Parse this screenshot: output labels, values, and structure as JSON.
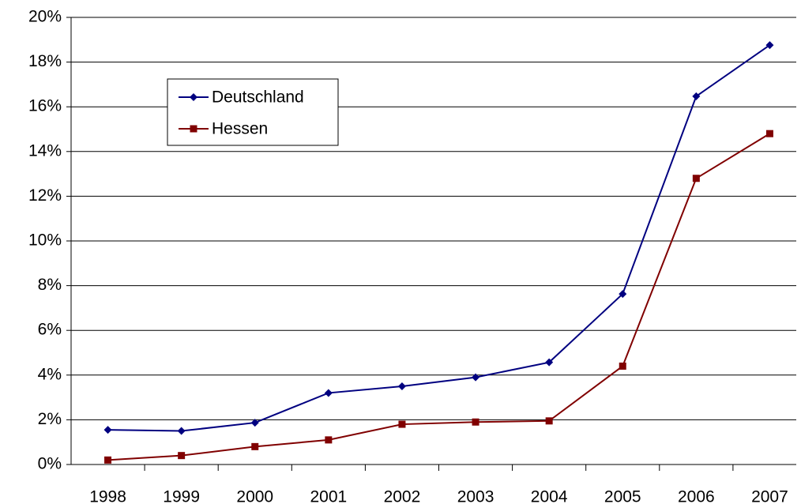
{
  "chart_data": {
    "type": "line",
    "categories": [
      "1998",
      "1999",
      "2000",
      "2001",
      "2002",
      "2003",
      "2004",
      "2005",
      "2006",
      "2007"
    ],
    "series": [
      {
        "name": "Deutschland",
        "color": "#000080",
        "marker": "diamond",
        "values": [
          1.55,
          1.5,
          1.87,
          3.2,
          3.5,
          3.9,
          4.57,
          7.63,
          16.47,
          18.76
        ]
      },
      {
        "name": "Hessen",
        "color": "#800000",
        "marker": "square",
        "values": [
          0.2,
          0.4,
          0.8,
          1.1,
          1.8,
          1.9,
          1.95,
          4.4,
          12.8,
          14.8
        ]
      }
    ],
    "ylim": [
      0,
      20
    ],
    "yticks": [
      {
        "value": 0,
        "label": "0%"
      },
      {
        "value": 2,
        "label": "2%"
      },
      {
        "value": 4,
        "label": "4%"
      },
      {
        "value": 6,
        "label": "6%"
      },
      {
        "value": 8,
        "label": "8%"
      },
      {
        "value": 10,
        "label": "10%"
      },
      {
        "value": 12,
        "label": "12%"
      },
      {
        "value": 14,
        "label": "14%"
      },
      {
        "value": 16,
        "label": "16%"
      },
      {
        "value": 18,
        "label": "18%"
      },
      {
        "value": 20,
        "label": "20%"
      }
    ],
    "grid": true,
    "legend": "upper left"
  }
}
